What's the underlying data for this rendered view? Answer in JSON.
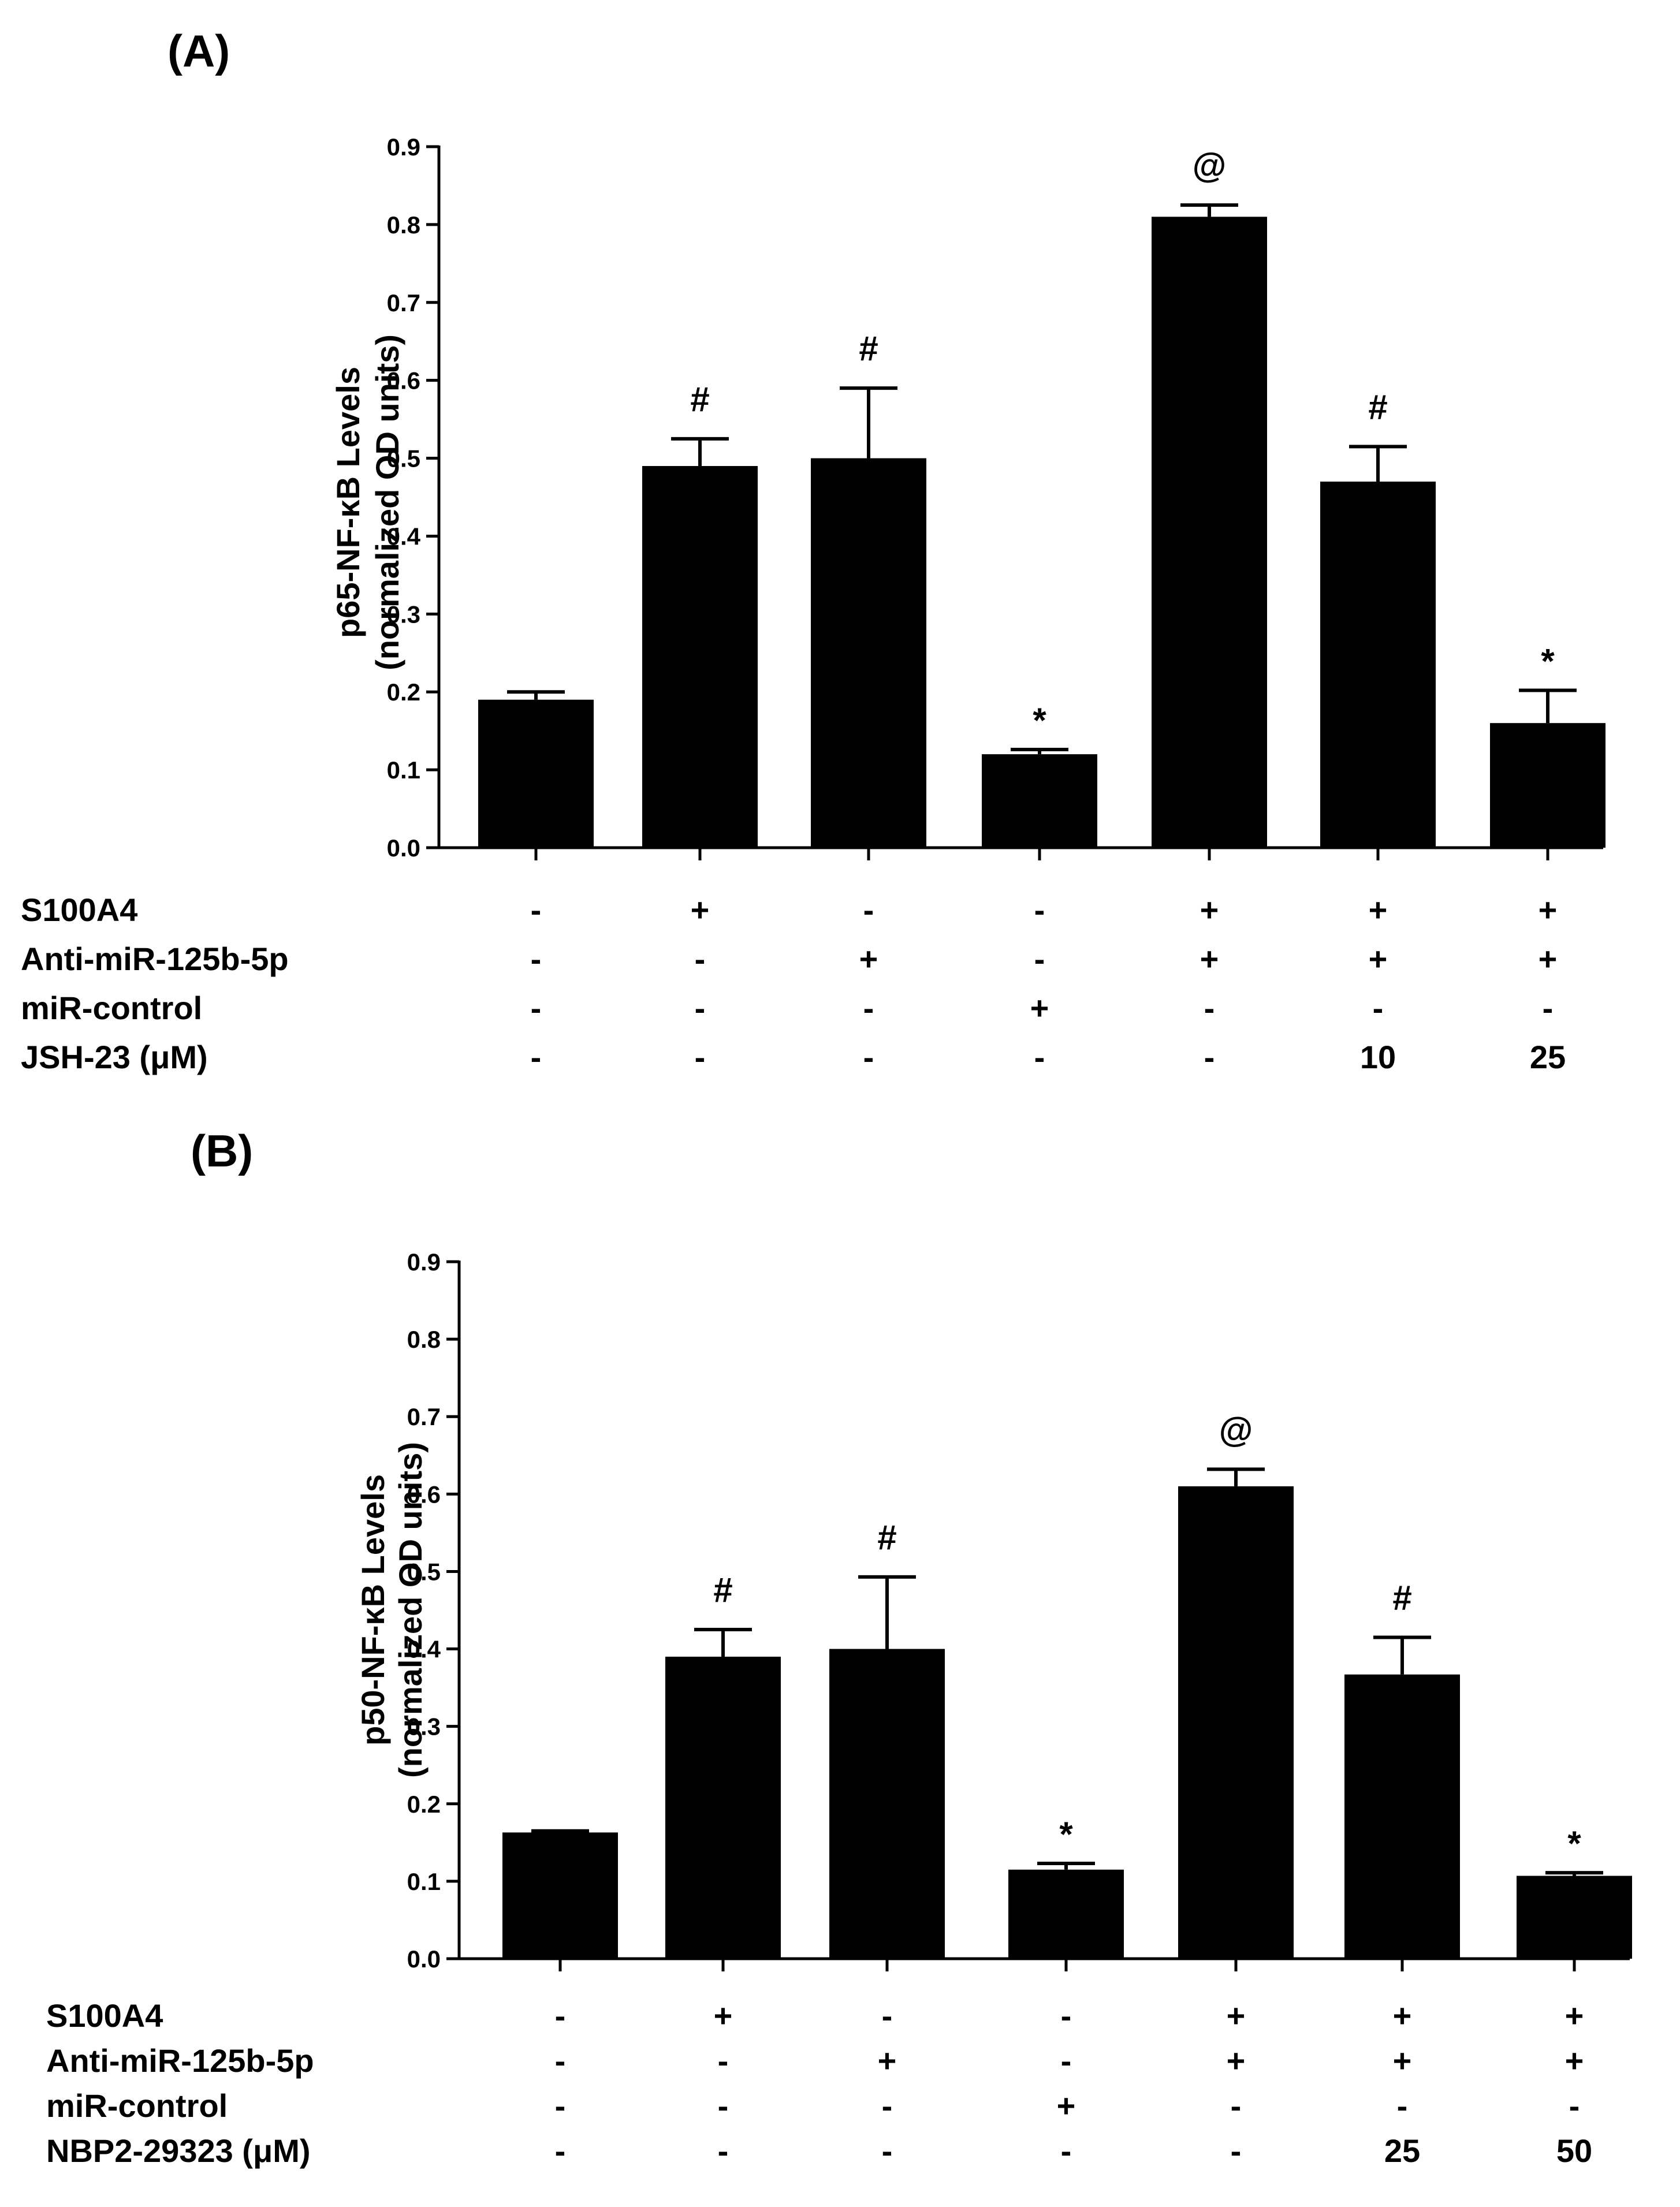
{
  "chart_data": [
    {
      "type": "bar",
      "panel": "(A)",
      "ylabel_line1": "p65-NF-κB Levels",
      "ylabel_line2": "(normalized OD units)",
      "ylim": [
        0,
        0.9
      ],
      "yticks": [
        "0.0",
        "0.1",
        "0.2",
        "0.3",
        "0.4",
        "0.5",
        "0.6",
        "0.7",
        "0.8",
        "0.9"
      ],
      "values": [
        0.19,
        0.49,
        0.5,
        0.12,
        0.81,
        0.47,
        0.16
      ],
      "errors": [
        0.01,
        0.035,
        0.09,
        0.006,
        0.015,
        0.045,
        0.042
      ],
      "annotations": [
        "",
        "#",
        "#",
        "*",
        "@",
        "#",
        "*"
      ],
      "conditions": [
        {
          "label": "S100A4",
          "marks": [
            "-",
            "+",
            "-",
            "-",
            "+",
            "+",
            "+"
          ]
        },
        {
          "label": "Anti-miR-125b-5p",
          "marks": [
            "-",
            "-",
            "+",
            "-",
            "+",
            "+",
            "+"
          ]
        },
        {
          "label": "miR-control",
          "marks": [
            "-",
            "-",
            "-",
            "+",
            "-",
            "-",
            "-"
          ]
        },
        {
          "label": "JSH-23 (μM)",
          "marks": [
            "-",
            "-",
            "-",
            "-",
            "-",
            "10",
            "25"
          ]
        }
      ]
    },
    {
      "type": "bar",
      "panel": "(B)",
      "ylabel_line1": "p50-NF-κB Levels",
      "ylabel_line2": "(normalized OD units)",
      "ylim": [
        0,
        0.9
      ],
      "yticks": [
        "0.0",
        "0.1",
        "0.2",
        "0.3",
        "0.4",
        "0.5",
        "0.6",
        "0.7",
        "0.8",
        "0.9"
      ],
      "values": [
        0.163,
        0.39,
        0.4,
        0.115,
        0.61,
        0.367,
        0.107
      ],
      "errors": [
        0.002,
        0.035,
        0.093,
        0.008,
        0.022,
        0.048,
        0.004
      ],
      "annotations": [
        "",
        "#",
        "#",
        "*",
        "@",
        "#",
        "*"
      ],
      "conditions": [
        {
          "label": "S100A4",
          "marks": [
            "-",
            "+",
            "-",
            "-",
            "+",
            "+",
            "+"
          ]
        },
        {
          "label": "Anti-miR-125b-5p",
          "marks": [
            "-",
            "-",
            "+",
            "-",
            "+",
            "+",
            "+"
          ]
        },
        {
          "label": "miR-control",
          "marks": [
            "-",
            "-",
            "-",
            "+",
            "-",
            "-",
            "-"
          ]
        },
        {
          "label": "NBP2-29323 (μM)",
          "marks": [
            "-",
            "-",
            "-",
            "-",
            "-",
            "25",
            "50"
          ]
        }
      ]
    }
  ]
}
